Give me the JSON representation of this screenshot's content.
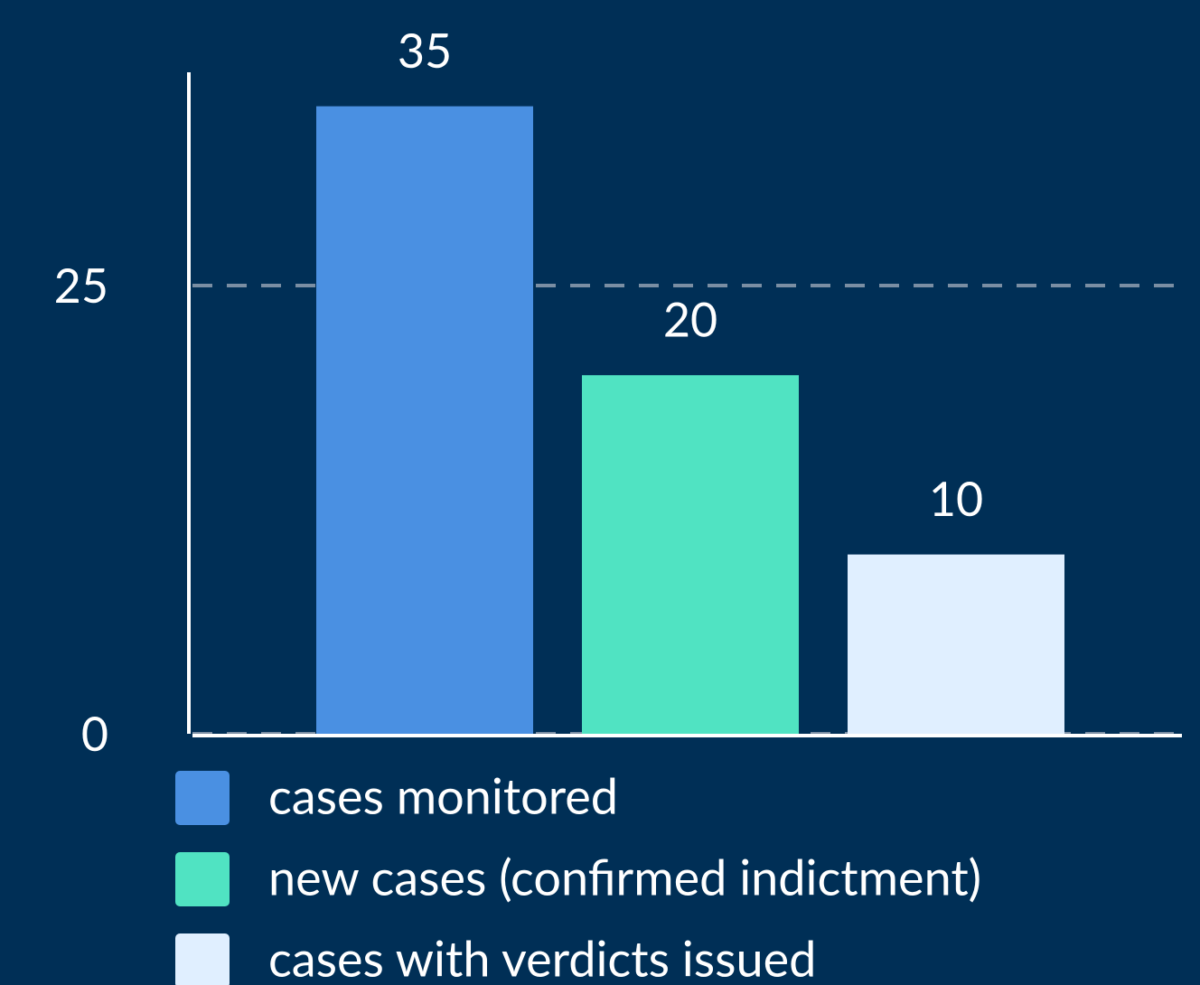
{
  "chart_data": {
    "type": "bar",
    "series": [
      {
        "name": "cases monitored",
        "color": "#4a90e2",
        "values": [
          35
        ]
      },
      {
        "name": "new cases (confirmed indictment)",
        "color": "#50e3c2",
        "values": [
          20
        ]
      },
      {
        "name": "cases with verdicts issued",
        "color": "#e0efff",
        "values": [
          10
        ]
      }
    ],
    "ylim": [
      0,
      37
    ],
    "yticks": [
      0,
      25
    ],
    "grid": true,
    "legend": "bottom"
  }
}
